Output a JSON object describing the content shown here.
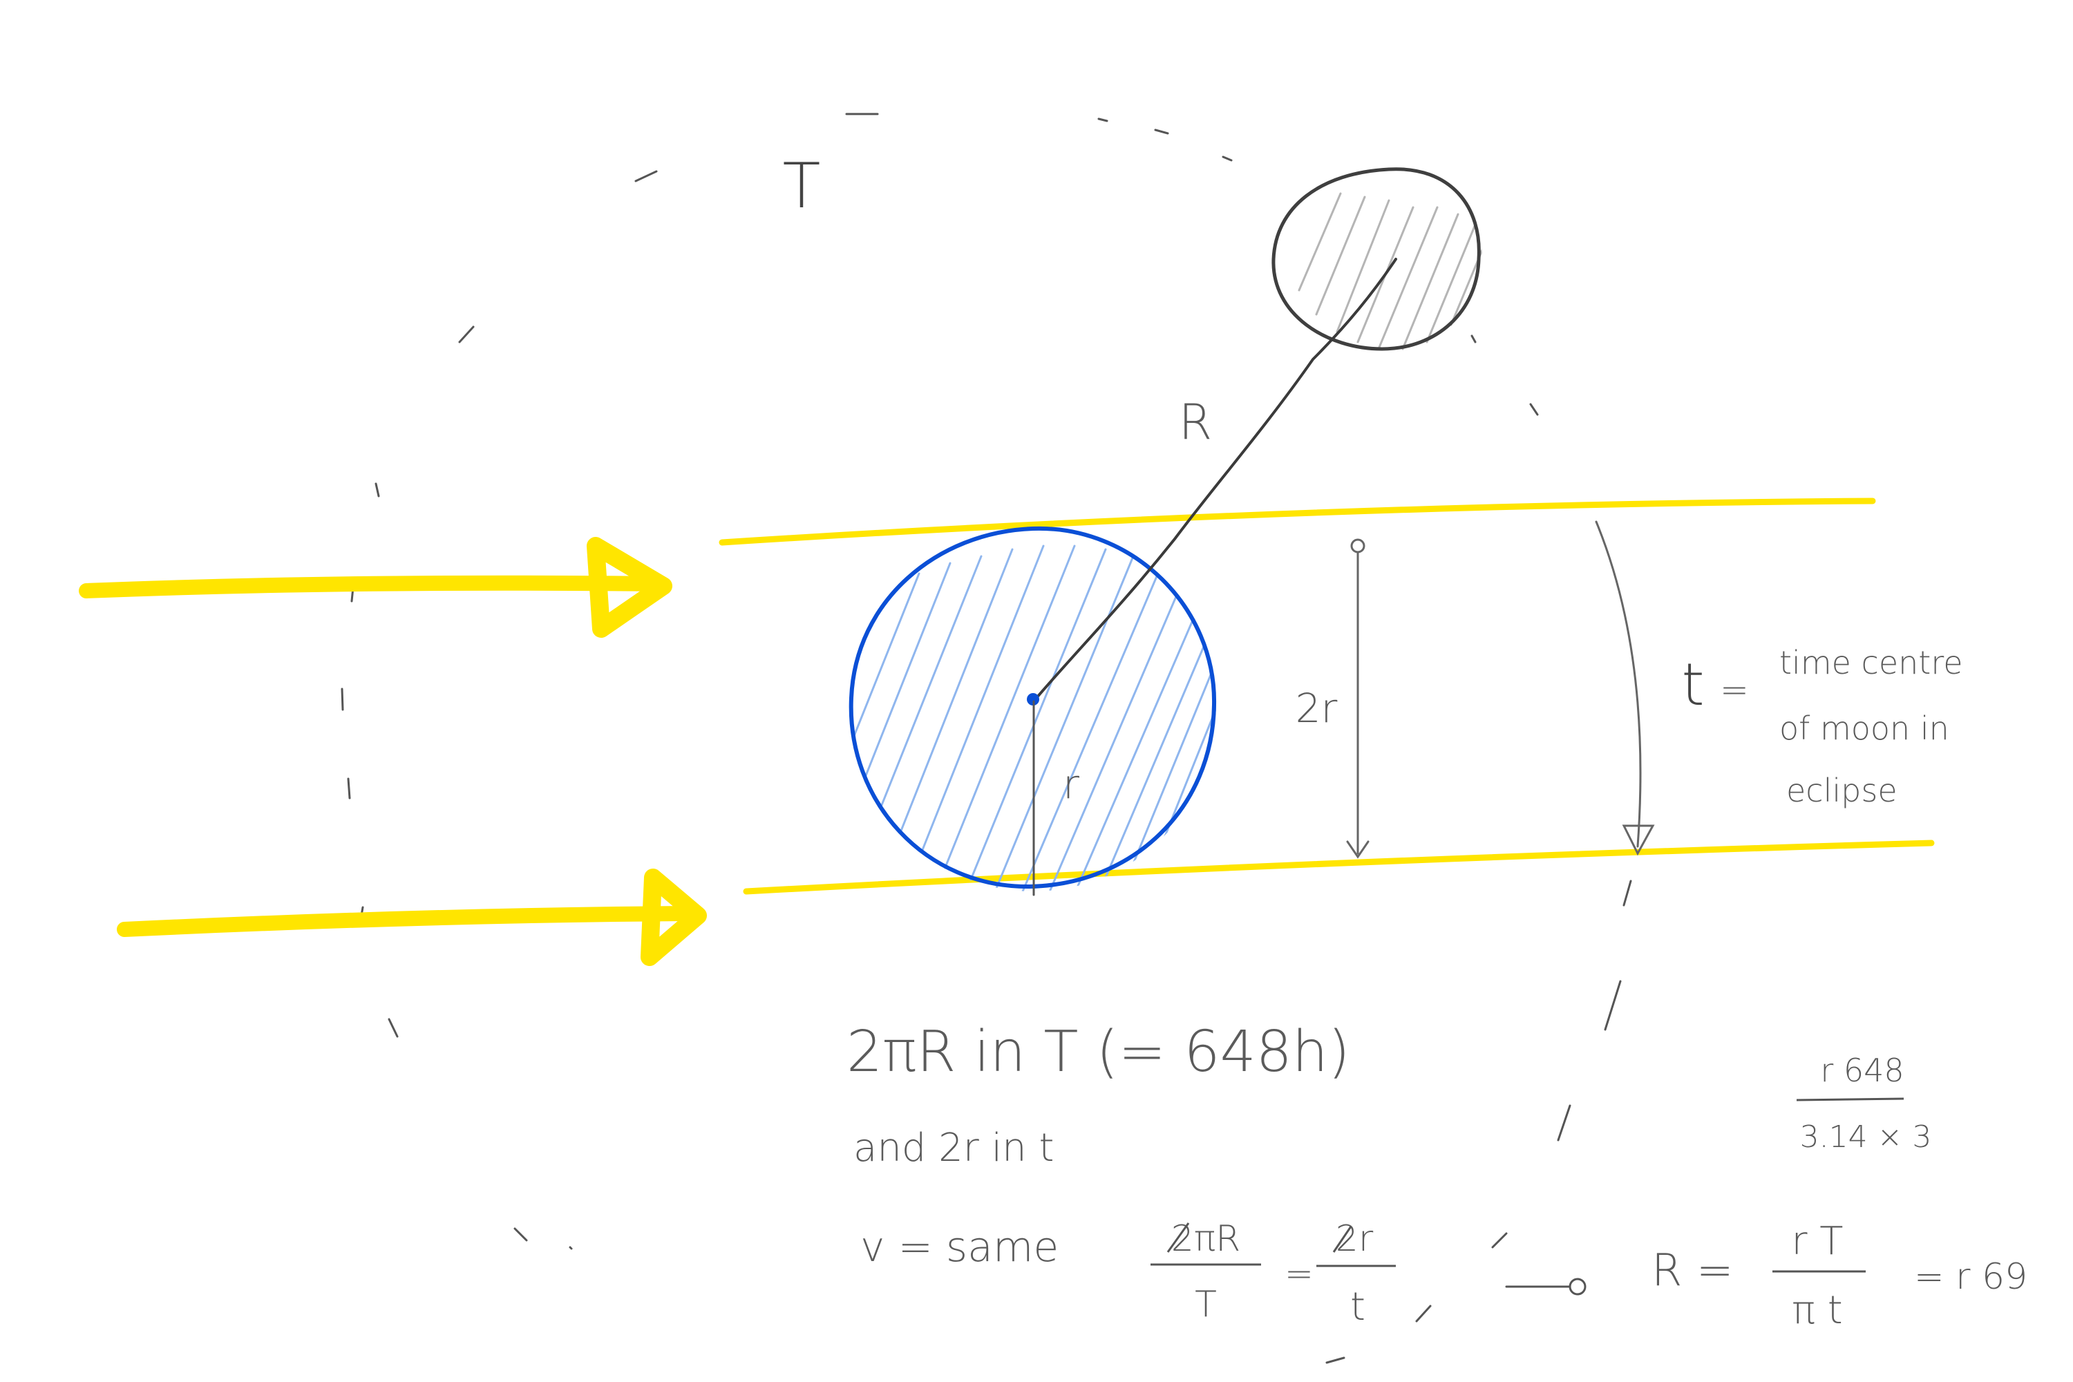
{
  "colors": {
    "background": "#ffffff",
    "sun_rays": "#ffe500",
    "earth_outline": "#0a4fd6",
    "earth_hatch": "#8fb6ee",
    "moon_outline": "#3f3f3f",
    "moon_hatch": "#b5b5b5",
    "pencil": "#555555"
  },
  "labels": {
    "orbit_period": "T",
    "orbit_radius": "R",
    "earth_radius": "r",
    "shadow_width": "2r",
    "eclipse_time_symbol": "t",
    "eclipse_time_equals": "=",
    "eclipse_time_def_line1": "time centre",
    "eclipse_time_def_line2": "of moon in",
    "eclipse_time_def_line3": "eclipse"
  },
  "equations": {
    "line1": "2πR in T (= 648h)",
    "line2": "and 2r in t",
    "line3_prefix": "v = same",
    "lhs_num": "2πR",
    "lhs_den": "T",
    "eq1": "=",
    "rhs_num": "2r",
    "rhs_den": "t",
    "result_lhs": "R =",
    "result_num": "r T",
    "result_den": "π t",
    "result_value": "= r 69",
    "side_num": "r 648",
    "side_den": "3.14 × 3"
  },
  "icons": {
    "sunlight": "arrow-right-icon",
    "earth": "circle-icon",
    "moon": "circle-icon",
    "implies": "arrow-right-icon"
  }
}
